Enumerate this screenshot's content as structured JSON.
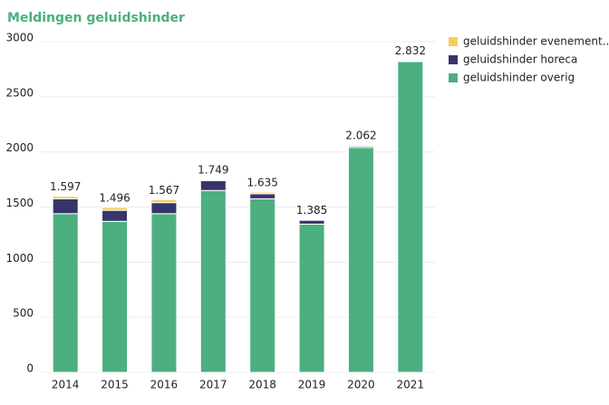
{
  "chart_data": {
    "type": "stacked_bar",
    "title": "Meldingen geluidshinder",
    "categories": [
      "2014",
      "2015",
      "2016",
      "2017",
      "2018",
      "2019",
      "2020",
      "2021"
    ],
    "series": [
      {
        "name": "geluidshinder evenement..",
        "color": "#f5cf55",
        "values": [
          22,
          26,
          27,
          9,
          15,
          5,
          10,
          4
        ]
      },
      {
        "name": "geluidshinder horeca",
        "color": "#36346b",
        "values": [
          135,
          100,
          100,
          90,
          45,
          35,
          12,
          8
        ]
      },
      {
        "name": "geluidshinder overig",
        "color": "#4caf7f",
        "values": [
          1440,
          1370,
          1440,
          1650,
          1575,
          1345,
          2040,
          2820
        ]
      }
    ],
    "totals": {
      "values": [
        1597,
        1496,
        1567,
        1749,
        1635,
        1385,
        2062,
        2832
      ],
      "value_labels": [
        "1.597",
        "1.496",
        "1.567",
        "1.749",
        "1.635",
        "1.385",
        "2.062",
        "2.832"
      ]
    },
    "ylim": [
      0,
      3000
    ],
    "yticks": [
      0,
      500,
      1000,
      1500,
      2000,
      2500,
      3000
    ],
    "grid": true,
    "legend": "top-right"
  }
}
